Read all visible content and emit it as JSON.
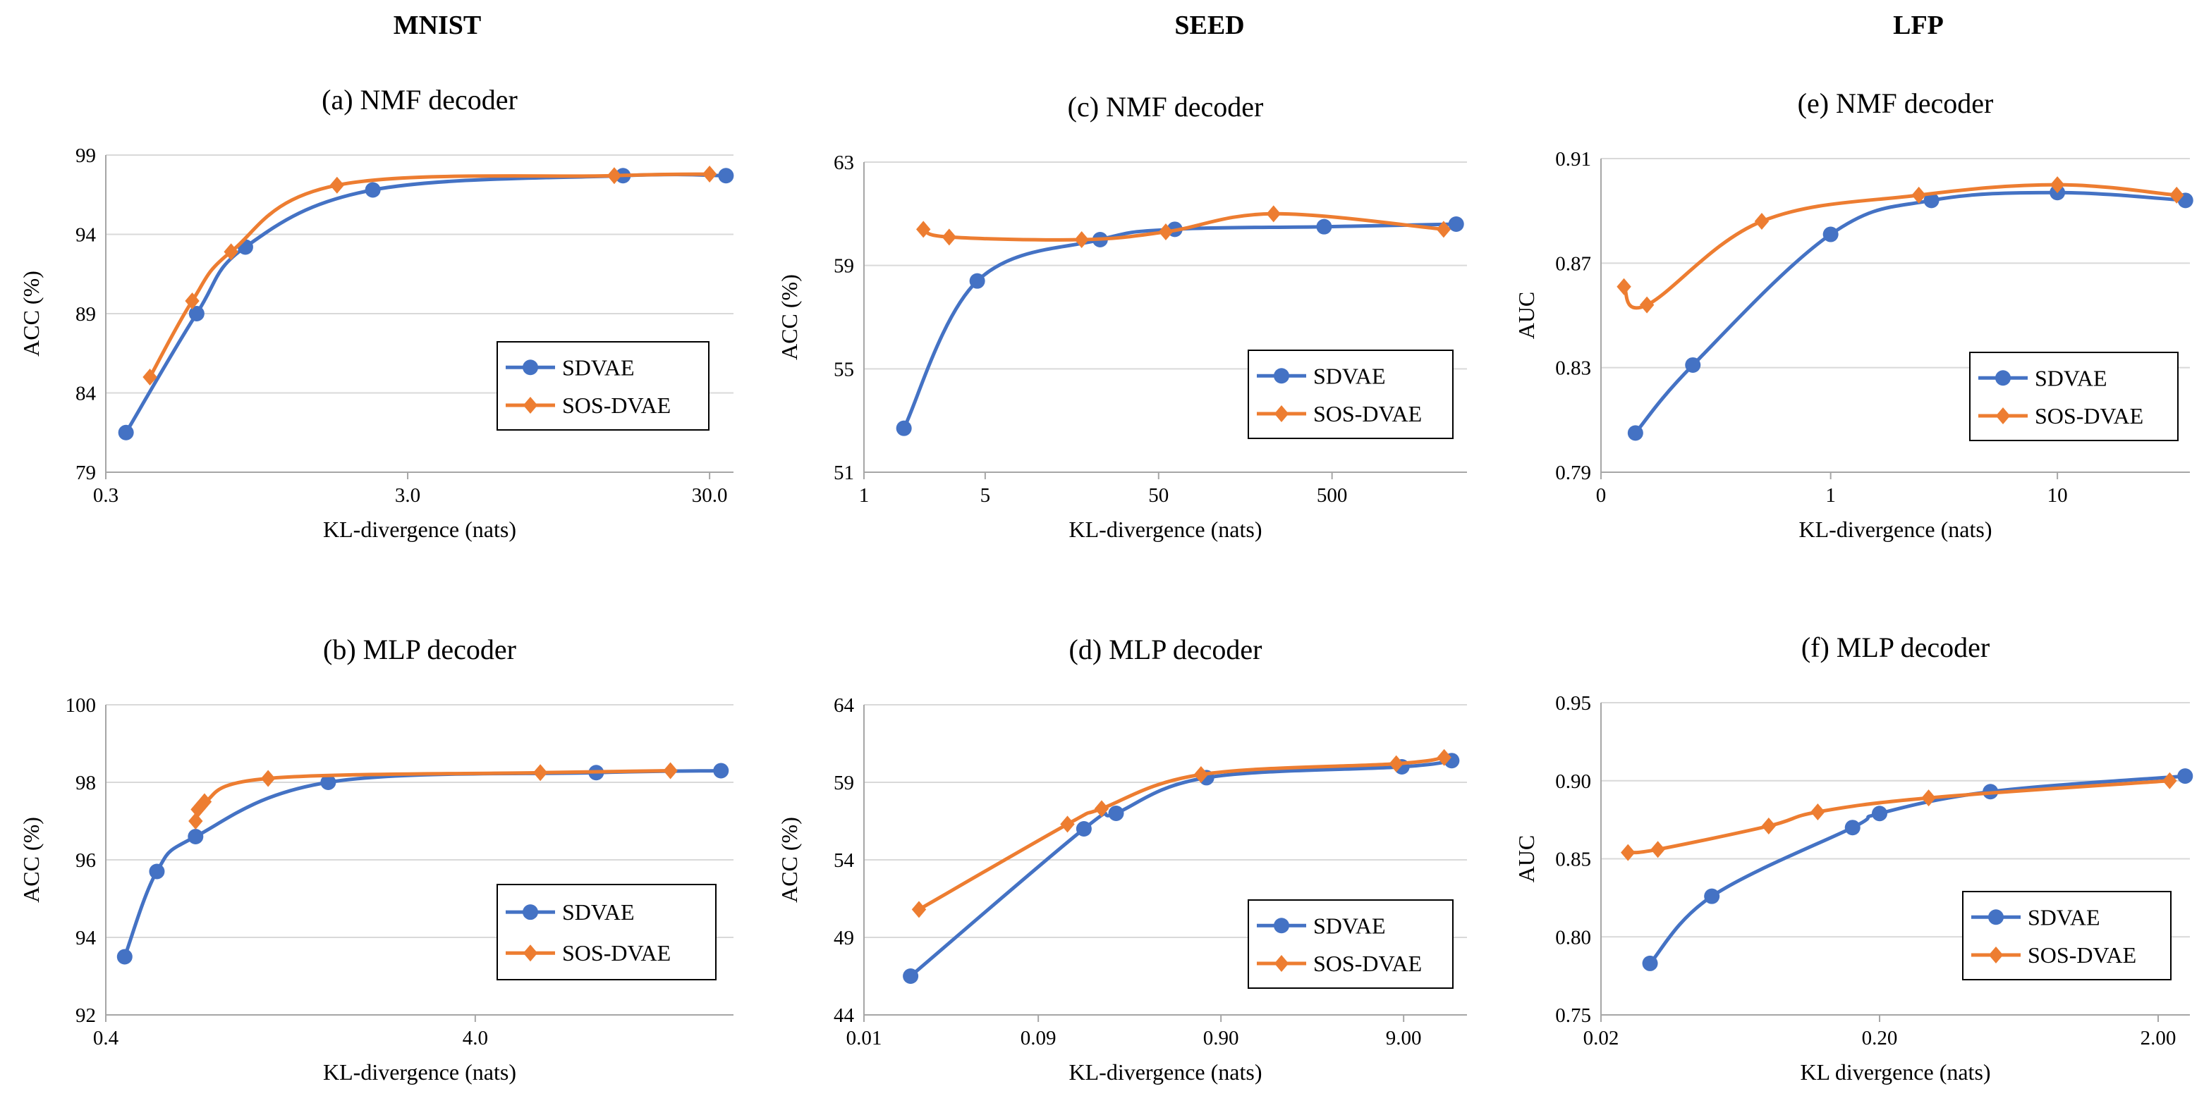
{
  "figure": {
    "column_headers": [
      "MNIST",
      "SEED",
      "LFP"
    ]
  },
  "colors": {
    "sdvae": "#4472C4",
    "sosdvae": "#ED7D31",
    "axis": "#A6A6A6"
  },
  "chart_data": [
    {
      "id": "a",
      "type": "line",
      "title": "(a) NMF decoder",
      "xlabel": "KL-divergence (nats)",
      "ylabel": "ACC (%)",
      "xscale": "log",
      "xlim": [
        0.3,
        36
      ],
      "ylim": [
        79,
        99
      ],
      "xticks": [
        0.3,
        3.0,
        30.0
      ],
      "xtick_labels": [
        "0.3",
        "3.0",
        "30.0"
      ],
      "yticks": [
        79,
        84,
        89,
        94,
        99
      ],
      "ytick_labels": [
        "79",
        "84",
        "89",
        "94",
        "99"
      ],
      "grid": true,
      "legend_position": "right",
      "series": [
        {
          "name": "SDVAE",
          "marker": "circle",
          "x": [
            0.35,
            0.6,
            0.87,
            2.3,
            15.5,
            34
          ],
          "y": [
            81.5,
            89.0,
            93.2,
            96.8,
            97.7,
            97.7
          ]
        },
        {
          "name": "SOS-DVAE",
          "marker": "diamond",
          "x": [
            0.42,
            0.58,
            0.78,
            1.75,
            14.5,
            30.0
          ],
          "y": [
            85.0,
            89.8,
            92.9,
            97.1,
            97.7,
            97.8
          ]
        }
      ]
    },
    {
      "id": "b",
      "type": "line",
      "title": "(b) MLP decoder",
      "xlabel": "KL-divergence (nats)",
      "ylabel": "ACC (%)",
      "xscale": "log",
      "xlim": [
        0.4,
        20
      ],
      "ylim": [
        92,
        100
      ],
      "xticks": [
        0.4,
        4.0
      ],
      "xtick_labels": [
        "0.4",
        "4.0"
      ],
      "yticks": [
        92,
        94,
        96,
        98,
        100
      ],
      "ytick_labels": [
        "92",
        "94",
        "96",
        "98",
        "100"
      ],
      "grid": true,
      "legend_position": "bottom-right",
      "series": [
        {
          "name": "SDVAE",
          "marker": "circle",
          "x": [
            0.45,
            0.55,
            0.7,
            1.6,
            8.5,
            18.5
          ],
          "y": [
            93.5,
            95.7,
            96.6,
            98.0,
            98.25,
            98.3
          ]
        },
        {
          "name": "SOS-DVAE",
          "marker": "diamond",
          "x": [
            0.7,
            0.71,
            0.74,
            1.1,
            6.0,
            13.5
          ],
          "y": [
            97.0,
            97.3,
            97.5,
            98.1,
            98.25,
            98.3
          ]
        }
      ]
    },
    {
      "id": "c",
      "type": "line",
      "title": "(c) NMF decoder",
      "xlabel": "KL-divergence (nats)",
      "ylabel": "ACC (%)",
      "xscale": "log",
      "xlim": [
        1,
        3000
      ],
      "ylim": [
        51,
        63
      ],
      "xticks": [
        1,
        5,
        50,
        500
      ],
      "xtick_labels": [
        "1",
        "5",
        "50",
        "500"
      ],
      "yticks": [
        51,
        55,
        59,
        63
      ],
      "ytick_labels": [
        "51",
        "55",
        "59",
        "63"
      ],
      "grid": true,
      "legend_position": "right",
      "series": [
        {
          "name": "SDVAE",
          "marker": "circle",
          "x": [
            1.7,
            4.5,
            23,
            62,
            450,
            2600
          ],
          "y": [
            52.7,
            58.4,
            60.0,
            60.4,
            60.5,
            60.6
          ]
        },
        {
          "name": "SOS-DVAE",
          "marker": "diamond",
          "x": [
            2.2,
            3.1,
            18,
            55,
            230,
            2200
          ],
          "y": [
            60.4,
            60.1,
            60.0,
            60.3,
            61.0,
            60.4
          ]
        }
      ]
    },
    {
      "id": "d",
      "type": "line",
      "title": "(d) MLP decoder",
      "xlabel": "KL-divergence (nats)",
      "ylabel": "ACC (%)",
      "xscale": "log",
      "xlim": [
        0.01,
        20
      ],
      "ylim": [
        44,
        64
      ],
      "xticks": [
        0.01,
        0.09,
        0.9,
        9.0
      ],
      "xtick_labels": [
        "0.01",
        "0.09",
        "0.90",
        "9.00"
      ],
      "yticks": [
        44,
        49,
        54,
        59,
        64
      ],
      "ytick_labels": [
        "44",
        "49",
        "54",
        "59",
        "64"
      ],
      "grid": true,
      "legend_position": "bottom-right",
      "series": [
        {
          "name": "SDVAE",
          "marker": "circle",
          "x": [
            0.018,
            0.16,
            0.24,
            0.75,
            8.8,
            16.5
          ],
          "y": [
            46.5,
            56.0,
            57.0,
            59.3,
            60.0,
            60.4
          ]
        },
        {
          "name": "SOS-DVAE",
          "marker": "diamond",
          "x": [
            0.02,
            0.13,
            0.2,
            0.7,
            8.2,
            15.0
          ],
          "y": [
            50.8,
            56.3,
            57.3,
            59.5,
            60.2,
            60.6
          ]
        }
      ]
    },
    {
      "id": "e",
      "type": "line",
      "title": "(e) NMF decoder",
      "xlabel": "KL-divergence (nats)",
      "ylabel": "AUC",
      "xscale": "linear",
      "xlim": [
        0,
        26
      ],
      "ylim": [
        0.79,
        0.91
      ],
      "xticks": [
        0,
        10
      ],
      "xtick_labels": [
        "0",
        "10"
      ],
      "extra_xticks": [
        1
      ],
      "extra_xtick_labels": [
        "1"
      ],
      "yticks": [
        0.79,
        0.83,
        0.87,
        0.91
      ],
      "ytick_labels": [
        "0.79",
        "0.83",
        "0.87",
        "0.91"
      ],
      "grid": true,
      "legend_position": "right",
      "series": [
        {
          "name": "SDVAE",
          "marker": "circle",
          "x": [
            0.15,
            0.4,
            1.0,
            5.0,
            10.0,
            24.5
          ],
          "y": [
            0.805,
            0.831,
            0.881,
            0.894,
            0.897,
            0.894
          ]
        },
        {
          "name": "SOS-DVAE",
          "marker": "diamond",
          "x": [
            0.1,
            0.2,
            0.7,
            4.5,
            10.0,
            23.5
          ],
          "y": [
            0.861,
            0.854,
            0.886,
            0.896,
            0.9,
            0.896
          ]
        }
      ]
    },
    {
      "id": "f",
      "type": "line",
      "title": "(f) MLP decoder",
      "xlabel": "KL divergence (nats)",
      "ylabel": "AUC",
      "xscale": "log",
      "xlim": [
        0.02,
        2.6
      ],
      "ylim": [
        0.75,
        0.95
      ],
      "xticks": [
        0.02,
        0.2,
        2.0
      ],
      "xtick_labels": [
        "0.02",
        "0.20",
        "2.00"
      ],
      "yticks": [
        0.75,
        0.8,
        0.85,
        0.9,
        0.95
      ],
      "ytick_labels": [
        "0.75",
        "0.80",
        "0.85",
        "0.90",
        "0.95"
      ],
      "grid": true,
      "legend_position": "bottom-right",
      "series": [
        {
          "name": "SDVAE",
          "marker": "circle",
          "x": [
            0.03,
            0.05,
            0.16,
            0.2,
            0.5,
            2.5
          ],
          "y": [
            0.783,
            0.826,
            0.87,
            0.879,
            0.893,
            0.903
          ]
        },
        {
          "name": "SOS-DVAE",
          "marker": "diamond",
          "x": [
            0.025,
            0.032,
            0.08,
            0.12,
            0.3,
            2.2
          ],
          "y": [
            0.854,
            0.856,
            0.871,
            0.88,
            0.889,
            0.9
          ]
        }
      ]
    }
  ]
}
